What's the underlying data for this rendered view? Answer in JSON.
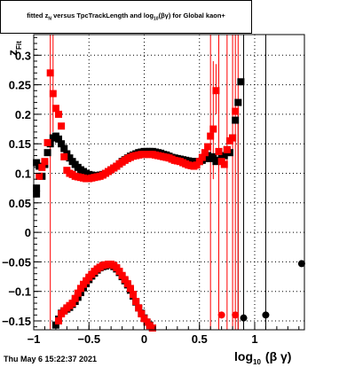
{
  "title": {
    "lead": "fitted",
    "sym": "z",
    "sym_sub": "N",
    "mid": " versus TpcTrackLength and log",
    "log_sub": "10",
    "tail": "(βγ) for Global kaon+"
  },
  "footer": "Thu May  6 15:22:37 2021",
  "colors": {
    "black_series": "#000000",
    "red_series": "#ff0000",
    "frame": "#000000"
  },
  "chart_data": {
    "type": "scatter",
    "xlabel": "log10 (β γ)",
    "xlabel_main": "log",
    "xlabel_sub": "10",
    "xlabel_rest": "(β γ)",
    "ylabel": "zFit",
    "ylabel_main": "z",
    "ylabel_sub": "Fit",
    "xlim": [
      -1.0,
      1.45
    ],
    "ylim": [
      -0.165,
      0.335
    ],
    "grid": true,
    "x_ticks": [
      {
        "v": -1,
        "label": "−1"
      },
      {
        "v": -0.5,
        "label": "−0.5"
      },
      {
        "v": 0,
        "label": "0"
      },
      {
        "v": 0.5,
        "label": "0.5"
      },
      {
        "v": 1,
        "label": "1"
      }
    ],
    "y_ticks": [
      {
        "v": -0.15,
        "label": "−0.15"
      },
      {
        "v": -0.1,
        "label": "−0.1"
      },
      {
        "v": -0.05,
        "label": "−0.05"
      },
      {
        "v": 0,
        "label": "0"
      },
      {
        "v": 0.05,
        "label": "0.05"
      },
      {
        "v": 0.1,
        "label": "0.1"
      },
      {
        "v": 0.15,
        "label": "0.15"
      },
      {
        "v": 0.2,
        "label": "0.2"
      },
      {
        "v": 0.25,
        "label": "0.25"
      },
      {
        "v": 0.3,
        "label": "0.3"
      }
    ],
    "series": [
      {
        "color": "#000000",
        "marker": "square",
        "points": [
          [
            -0.975,
            0.065
          ],
          [
            -0.975,
            0.075
          ],
          [
            -0.975,
            0.118
          ],
          [
            -0.95,
            0.112
          ],
          [
            -0.925,
            0.095
          ],
          [
            -0.9,
            0.115
          ],
          [
            -0.875,
            0.135
          ],
          [
            -0.85,
            0.15
          ],
          [
            -0.825,
            0.16
          ],
          [
            -0.8,
            0.163
          ],
          [
            -0.775,
            0.158
          ],
          [
            -0.75,
            0.15
          ],
          [
            -0.725,
            0.142
          ],
          [
            -0.7,
            0.133
          ],
          [
            -0.675,
            0.126
          ],
          [
            -0.65,
            0.12
          ],
          [
            -0.625,
            0.115
          ],
          [
            -0.6,
            0.11
          ],
          [
            -0.575,
            0.106
          ],
          [
            -0.55,
            0.103
          ],
          [
            -0.525,
            0.1
          ],
          [
            -0.5,
            0.098
          ],
          [
            -0.475,
            0.097
          ],
          [
            -0.45,
            0.096
          ],
          [
            -0.425,
            0.096
          ],
          [
            -0.4,
            0.097
          ],
          [
            -0.375,
            0.098
          ],
          [
            -0.35,
            0.1
          ],
          [
            -0.325,
            0.103
          ],
          [
            -0.3,
            0.106
          ],
          [
            -0.275,
            0.109
          ],
          [
            -0.25,
            0.112
          ],
          [
            -0.225,
            0.116
          ],
          [
            -0.2,
            0.12
          ],
          [
            -0.175,
            0.123
          ],
          [
            -0.15,
            0.126
          ],
          [
            -0.125,
            0.129
          ],
          [
            -0.1,
            0.131
          ],
          [
            -0.075,
            0.133
          ],
          [
            -0.05,
            0.135
          ],
          [
            -0.025,
            0.136
          ],
          [
            0.0,
            0.137
          ],
          [
            0.025,
            0.137
          ],
          [
            0.05,
            0.137
          ],
          [
            0.075,
            0.137
          ],
          [
            0.1,
            0.136
          ],
          [
            0.125,
            0.135
          ],
          [
            0.15,
            0.134
          ],
          [
            0.175,
            0.132
          ],
          [
            0.2,
            0.131
          ],
          [
            0.225,
            0.129
          ],
          [
            0.25,
            0.127
          ],
          [
            0.275,
            0.126
          ],
          [
            0.3,
            0.125
          ],
          [
            0.325,
            0.124
          ],
          [
            0.35,
            0.123
          ],
          [
            0.375,
            0.122
          ],
          [
            0.4,
            0.121
          ],
          [
            0.425,
            0.12
          ],
          [
            0.45,
            0.12
          ],
          [
            0.475,
            0.12
          ],
          [
            0.5,
            0.12
          ],
          [
            0.525,
            0.122
          ],
          [
            0.55,
            0.125
          ],
          [
            0.575,
            0.13
          ],
          [
            0.6,
            0.125
          ],
          [
            0.625,
            0.128
          ],
          [
            0.65,
            0.12
          ],
          [
            0.675,
            0.122
          ],
          [
            0.7,
            0.125
          ],
          [
            0.725,
            0.13
          ],
          [
            0.75,
            0.14
          ],
          [
            0.775,
            0.135
          ],
          [
            0.8,
            0.16
          ],
          [
            0.825,
            0.19
          ],
          [
            0.85,
            0.22
          ],
          [
            0.875,
            0.255
          ],
          [
            -0.8,
            -0.157
          ],
          [
            -0.775,
            -0.147
          ],
          [
            -0.75,
            -0.137
          ],
          [
            -0.725,
            -0.133
          ],
          [
            -0.7,
            -0.13
          ],
          [
            -0.675,
            -0.127
          ],
          [
            -0.65,
            -0.122
          ],
          [
            -0.625,
            -0.117
          ],
          [
            -0.6,
            -0.11
          ],
          [
            -0.575,
            -0.102
          ],
          [
            -0.55,
            -0.094
          ],
          [
            -0.525,
            -0.087
          ],
          [
            -0.5,
            -0.08
          ],
          [
            -0.475,
            -0.074
          ],
          [
            -0.45,
            -0.069
          ],
          [
            -0.425,
            -0.064
          ],
          [
            -0.4,
            -0.06
          ],
          [
            -0.375,
            -0.058
          ],
          [
            -0.35,
            -0.057
          ],
          [
            -0.325,
            -0.055
          ],
          [
            -0.3,
            -0.055
          ],
          [
            -0.275,
            -0.058
          ],
          [
            -0.25,
            -0.062
          ],
          [
            -0.225,
            -0.068
          ],
          [
            -0.2,
            -0.075
          ],
          [
            -0.175,
            -0.082
          ],
          [
            -0.15,
            -0.089
          ],
          [
            -0.125,
            -0.098
          ],
          [
            -0.1,
            -0.108
          ],
          [
            -0.075,
            -0.118
          ],
          [
            -0.05,
            -0.128
          ],
          [
            -0.025,
            -0.137
          ],
          [
            0.0,
            -0.145
          ],
          [
            0.025,
            -0.152
          ],
          [
            0.05,
            -0.157
          ],
          [
            0.075,
            -0.162
          ]
        ],
        "error_bars": [
          [
            1.1,
            -0.165,
            0.335
          ],
          [
            0.85,
            -0.165,
            0.2
          ],
          [
            0.9,
            -0.165,
            0.335
          ]
        ],
        "circles": [
          [
            0.9,
            -0.145
          ],
          [
            1.1,
            -0.14
          ],
          [
            1.425,
            -0.053
          ]
        ]
      },
      {
        "color": "#ff0000",
        "marker": "square",
        "points": [
          [
            -0.95,
            0.095
          ],
          [
            -0.925,
            0.11
          ],
          [
            -0.9,
            0.12
          ],
          [
            -0.875,
            0.152
          ],
          [
            -0.85,
            0.27
          ],
          [
            -0.825,
            0.235
          ],
          [
            -0.8,
            0.21
          ],
          [
            -0.775,
            0.2
          ],
          [
            -0.75,
            0.18
          ],
          [
            -0.725,
            0.128
          ],
          [
            -0.7,
            0.105
          ],
          [
            -0.675,
            0.1
          ],
          [
            -0.65,
            0.098
          ],
          [
            -0.625,
            0.095
          ],
          [
            -0.6,
            0.094
          ],
          [
            -0.575,
            0.093
          ],
          [
            -0.55,
            0.092
          ],
          [
            -0.525,
            0.091
          ],
          [
            -0.5,
            0.091
          ],
          [
            -0.475,
            0.092
          ],
          [
            -0.45,
            0.093
          ],
          [
            -0.425,
            0.094
          ],
          [
            -0.4,
            0.095
          ],
          [
            -0.375,
            0.097
          ],
          [
            -0.35,
            0.1
          ],
          [
            -0.325,
            0.103
          ],
          [
            -0.3,
            0.106
          ],
          [
            -0.275,
            0.109
          ],
          [
            -0.25,
            0.112
          ],
          [
            -0.225,
            0.116
          ],
          [
            -0.2,
            0.119
          ],
          [
            -0.175,
            0.122
          ],
          [
            -0.15,
            0.125
          ],
          [
            -0.125,
            0.127
          ],
          [
            -0.1,
            0.129
          ],
          [
            -0.075,
            0.13
          ],
          [
            -0.05,
            0.131
          ],
          [
            -0.025,
            0.132
          ],
          [
            0.0,
            0.132
          ],
          [
            0.025,
            0.132
          ],
          [
            0.05,
            0.132
          ],
          [
            0.075,
            0.132
          ],
          [
            0.1,
            0.131
          ],
          [
            0.125,
            0.13
          ],
          [
            0.15,
            0.129
          ],
          [
            0.175,
            0.128
          ],
          [
            0.2,
            0.127
          ],
          [
            0.225,
            0.126
          ],
          [
            0.25,
            0.124
          ],
          [
            0.275,
            0.122
          ],
          [
            0.3,
            0.121
          ],
          [
            0.325,
            0.12
          ],
          [
            0.35,
            0.118
          ],
          [
            0.375,
            0.116
          ],
          [
            0.4,
            0.114
          ],
          [
            0.425,
            0.113
          ],
          [
            0.45,
            0.112
          ],
          [
            0.475,
            0.114
          ],
          [
            0.5,
            0.12
          ],
          [
            0.525,
            0.127
          ],
          [
            0.55,
            0.135
          ],
          [
            0.575,
            0.145
          ],
          [
            0.6,
            0.163
          ],
          [
            0.625,
            0.175
          ],
          [
            0.65,
            0.24
          ],
          [
            0.675,
            0.137
          ],
          [
            0.7,
            0.12
          ],
          [
            0.725,
            0.115
          ],
          [
            0.75,
            0.14
          ],
          [
            0.775,
            0.155
          ],
          [
            0.8,
            0.16
          ],
          [
            0.825,
            0.205
          ],
          [
            -0.775,
            -0.15
          ],
          [
            -0.75,
            -0.138
          ],
          [
            -0.725,
            -0.133
          ],
          [
            -0.7,
            -0.128
          ],
          [
            -0.675,
            -0.124
          ],
          [
            -0.65,
            -0.12
          ],
          [
            -0.625,
            -0.112
          ],
          [
            -0.6,
            -0.103
          ],
          [
            -0.575,
            -0.095
          ],
          [
            -0.55,
            -0.088
          ],
          [
            -0.525,
            -0.082
          ],
          [
            -0.5,
            -0.076
          ],
          [
            -0.475,
            -0.071
          ],
          [
            -0.45,
            -0.066
          ],
          [
            -0.425,
            -0.062
          ],
          [
            -0.4,
            -0.059
          ],
          [
            -0.375,
            -0.056
          ],
          [
            -0.35,
            -0.055
          ],
          [
            -0.325,
            -0.054
          ],
          [
            -0.3,
            -0.054
          ],
          [
            -0.275,
            -0.056
          ],
          [
            -0.25,
            -0.06
          ],
          [
            -0.225,
            -0.066
          ],
          [
            -0.2,
            -0.073
          ],
          [
            -0.175,
            -0.08
          ],
          [
            -0.15,
            -0.087
          ],
          [
            -0.125,
            -0.095
          ],
          [
            -0.1,
            -0.105
          ],
          [
            -0.075,
            -0.117
          ],
          [
            -0.05,
            -0.128
          ],
          [
            -0.025,
            -0.138
          ],
          [
            0.0,
            -0.146
          ],
          [
            0.025,
            -0.152
          ],
          [
            0.05,
            -0.158
          ],
          [
            0.075,
            -0.162
          ]
        ],
        "error_bars": [
          [
            -0.85,
            -0.165,
            0.335
          ],
          [
            -0.825,
            0.17,
            0.335
          ],
          [
            0.6,
            -0.165,
            0.335
          ],
          [
            0.625,
            0.09,
            0.29
          ],
          [
            0.65,
            0.2,
            0.285
          ],
          [
            0.675,
            -0.165,
            0.335
          ],
          [
            0.75,
            -0.165,
            0.335
          ],
          [
            0.8,
            -0.165,
            0.335
          ],
          [
            0.825,
            -0.165,
            0.335
          ],
          [
            0.85,
            -0.165,
            0.335
          ]
        ],
        "circles": [
          [
            0.7,
            -0.14
          ],
          [
            0.825,
            -0.14
          ]
        ]
      }
    ]
  }
}
